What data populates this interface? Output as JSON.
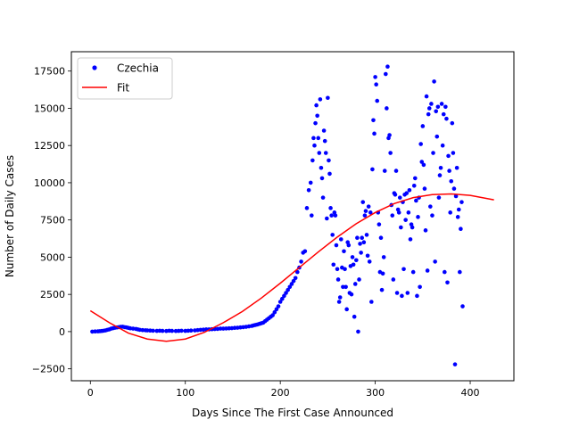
{
  "chart_data": {
    "type": "scatter",
    "xlabel": "Days Since The First Case Announced",
    "ylabel": "Number of Daily Cases",
    "xlim": [
      -20,
      446
    ],
    "ylim": [
      -3300,
      18800
    ],
    "x_ticks": [
      0,
      100,
      200,
      300,
      400
    ],
    "y_ticks": [
      -2500,
      0,
      2500,
      5000,
      7500,
      10000,
      12500,
      15000,
      17500
    ],
    "x_tick_labels": [
      "0",
      "100",
      "200",
      "300",
      "400"
    ],
    "y_tick_labels": [
      "−2500",
      "0",
      "2500",
      "5000",
      "7500",
      "10000",
      "12500",
      "15000",
      "17500"
    ],
    "grid": false,
    "legend_position": "top-left",
    "series": [
      {
        "name": "Czechia",
        "kind": "scatter",
        "color": "#0000ff",
        "points": [
          [
            2,
            0
          ],
          [
            5,
            10
          ],
          [
            8,
            20
          ],
          [
            10,
            30
          ],
          [
            12,
            40
          ],
          [
            14,
            60
          ],
          [
            16,
            80
          ],
          [
            18,
            120
          ],
          [
            20,
            150
          ],
          [
            22,
            200
          ],
          [
            24,
            230
          ],
          [
            26,
            260
          ],
          [
            28,
            280
          ],
          [
            30,
            300
          ],
          [
            32,
            320
          ],
          [
            34,
            330
          ],
          [
            36,
            300
          ],
          [
            38,
            280
          ],
          [
            40,
            250
          ],
          [
            42,
            220
          ],
          [
            45,
            200
          ],
          [
            48,
            180
          ],
          [
            50,
            150
          ],
          [
            52,
            120
          ],
          [
            55,
            100
          ],
          [
            58,
            90
          ],
          [
            60,
            80
          ],
          [
            63,
            70
          ],
          [
            66,
            60
          ],
          [
            70,
            50
          ],
          [
            73,
            60
          ],
          [
            76,
            50
          ],
          [
            80,
            40
          ],
          [
            83,
            60
          ],
          [
            86,
            50
          ],
          [
            90,
            40
          ],
          [
            93,
            50
          ],
          [
            96,
            60
          ],
          [
            100,
            50
          ],
          [
            103,
            60
          ],
          [
            106,
            70
          ],
          [
            110,
            80
          ],
          [
            113,
            100
          ],
          [
            116,
            120
          ],
          [
            119,
            130
          ],
          [
            122,
            150
          ],
          [
            125,
            150
          ],
          [
            128,
            160
          ],
          [
            131,
            170
          ],
          [
            134,
            180
          ],
          [
            137,
            200
          ],
          [
            140,
            200
          ],
          [
            143,
            210
          ],
          [
            146,
            220
          ],
          [
            149,
            230
          ],
          [
            152,
            250
          ],
          [
            155,
            260
          ],
          [
            158,
            280
          ],
          [
            161,
            300
          ],
          [
            164,
            320
          ],
          [
            167,
            350
          ],
          [
            170,
            380
          ],
          [
            172,
            420
          ],
          [
            174,
            450
          ],
          [
            176,
            480
          ],
          [
            178,
            520
          ],
          [
            180,
            560
          ],
          [
            182,
            600
          ],
          [
            184,
            700
          ],
          [
            186,
            800
          ],
          [
            188,
            900
          ],
          [
            190,
            1000
          ],
          [
            192,
            1100
          ],
          [
            194,
            1300
          ],
          [
            196,
            1500
          ],
          [
            198,
            1700
          ],
          [
            200,
            2000
          ],
          [
            202,
            2200
          ],
          [
            204,
            2400
          ],
          [
            206,
            2600
          ],
          [
            208,
            2800
          ],
          [
            210,
            3000
          ],
          [
            212,
            3200
          ],
          [
            214,
            3400
          ],
          [
            216,
            3600
          ],
          [
            218,
            4000
          ],
          [
            220,
            4300
          ],
          [
            222,
            4700
          ],
          [
            224,
            5300
          ],
          [
            226,
            5400
          ],
          [
            228,
            8300
          ],
          [
            230,
            9500
          ],
          [
            232,
            10000
          ],
          [
            233,
            7800
          ],
          [
            234,
            11500
          ],
          [
            235,
            13000
          ],
          [
            236,
            12500
          ],
          [
            237,
            14000
          ],
          [
            238,
            15200
          ],
          [
            239,
            14500
          ],
          [
            240,
            13000
          ],
          [
            241,
            12000
          ],
          [
            242,
            15600
          ],
          [
            243,
            11000
          ],
          [
            244,
            10300
          ],
          [
            245,
            9000
          ],
          [
            246,
            13500
          ],
          [
            247,
            12800
          ],
          [
            248,
            12000
          ],
          [
            249,
            7600
          ],
          [
            250,
            15700
          ],
          [
            251,
            11500
          ],
          [
            252,
            10600
          ],
          [
            253,
            8300
          ],
          [
            254,
            7800
          ],
          [
            255,
            6500
          ],
          [
            256,
            4500
          ],
          [
            257,
            8000
          ],
          [
            258,
            7800
          ],
          [
            259,
            5800
          ],
          [
            260,
            4200
          ],
          [
            261,
            3500
          ],
          [
            262,
            2000
          ],
          [
            263,
            2300
          ],
          [
            264,
            6200
          ],
          [
            265,
            4300
          ],
          [
            266,
            3000
          ],
          [
            267,
            5400
          ],
          [
            268,
            4200
          ],
          [
            269,
            3000
          ],
          [
            270,
            1500
          ],
          [
            271,
            6000
          ],
          [
            272,
            5800
          ],
          [
            273,
            2600
          ],
          [
            274,
            4400
          ],
          [
            275,
            2500
          ],
          [
            276,
            5000
          ],
          [
            277,
            4500
          ],
          [
            278,
            1000
          ],
          [
            279,
            3200
          ],
          [
            280,
            4800
          ],
          [
            281,
            6300
          ],
          [
            282,
            0
          ],
          [
            283,
            3500
          ],
          [
            284,
            5900
          ],
          [
            285,
            5300
          ],
          [
            286,
            6300
          ],
          [
            287,
            8700
          ],
          [
            288,
            6000
          ],
          [
            289,
            7800
          ],
          [
            290,
            8100
          ],
          [
            291,
            6500
          ],
          [
            292,
            5100
          ],
          [
            293,
            8400
          ],
          [
            294,
            4700
          ],
          [
            295,
            8000
          ],
          [
            296,
            2000
          ],
          [
            297,
            10900
          ],
          [
            298,
            14200
          ],
          [
            299,
            13300
          ],
          [
            300,
            17100
          ],
          [
            301,
            16600
          ],
          [
            302,
            15500
          ],
          [
            303,
            8000
          ],
          [
            304,
            7200
          ],
          [
            305,
            4000
          ],
          [
            306,
            6300
          ],
          [
            307,
            2800
          ],
          [
            308,
            3900
          ],
          [
            309,
            5000
          ],
          [
            310,
            10800
          ],
          [
            311,
            17300
          ],
          [
            312,
            15000
          ],
          [
            313,
            17800
          ],
          [
            314,
            13000
          ],
          [
            315,
            13200
          ],
          [
            316,
            12000
          ],
          [
            317,
            8500
          ],
          [
            318,
            7800
          ],
          [
            319,
            3500
          ],
          [
            320,
            9300
          ],
          [
            321,
            9200
          ],
          [
            322,
            10800
          ],
          [
            323,
            2600
          ],
          [
            324,
            8200
          ],
          [
            325,
            8000
          ],
          [
            326,
            9000
          ],
          [
            327,
            7000
          ],
          [
            328,
            2400
          ],
          [
            329,
            8700
          ],
          [
            330,
            4200
          ],
          [
            331,
            9200
          ],
          [
            332,
            7500
          ],
          [
            333,
            9300
          ],
          [
            334,
            2600
          ],
          [
            335,
            8000
          ],
          [
            336,
            9500
          ],
          [
            337,
            6200
          ],
          [
            338,
            7200
          ],
          [
            339,
            7000
          ],
          [
            340,
            4000
          ],
          [
            341,
            9800
          ],
          [
            342,
            10300
          ],
          [
            343,
            8800
          ],
          [
            344,
            2400
          ],
          [
            345,
            7700
          ],
          [
            346,
            9000
          ],
          [
            347,
            3000
          ],
          [
            348,
            12600
          ],
          [
            349,
            11400
          ],
          [
            350,
            13800
          ],
          [
            351,
            11200
          ],
          [
            352,
            9600
          ],
          [
            353,
            6800
          ],
          [
            354,
            15800
          ],
          [
            355,
            4100
          ],
          [
            356,
            14600
          ],
          [
            357,
            15000
          ],
          [
            358,
            8400
          ],
          [
            359,
            15300
          ],
          [
            360,
            7800
          ],
          [
            361,
            12000
          ],
          [
            362,
            16800
          ],
          [
            363,
            4700
          ],
          [
            364,
            14800
          ],
          [
            365,
            13100
          ],
          [
            366,
            15100
          ],
          [
            367,
            9000
          ],
          [
            368,
            10500
          ],
          [
            369,
            11000
          ],
          [
            370,
            15300
          ],
          [
            371,
            12500
          ],
          [
            372,
            14600
          ],
          [
            373,
            4000
          ],
          [
            374,
            15100
          ],
          [
            375,
            14300
          ],
          [
            376,
            3300
          ],
          [
            377,
            11800
          ],
          [
            378,
            10800
          ],
          [
            379,
            8000
          ],
          [
            380,
            10100
          ],
          [
            381,
            14000
          ],
          [
            382,
            12000
          ],
          [
            383,
            9600
          ],
          [
            384,
            -2200
          ],
          [
            385,
            9100
          ],
          [
            386,
            11000
          ],
          [
            387,
            7700
          ],
          [
            388,
            8200
          ],
          [
            389,
            4000
          ],
          [
            390,
            6900
          ],
          [
            391,
            8700
          ],
          [
            392,
            1700
          ]
        ]
      },
      {
        "name": "Fit",
        "kind": "line",
        "color": "#ff0000",
        "points": [
          [
            0,
            1400
          ],
          [
            20,
            600
          ],
          [
            40,
            -100
          ],
          [
            60,
            -500
          ],
          [
            80,
            -650
          ],
          [
            100,
            -500
          ],
          [
            120,
            -50
          ],
          [
            140,
            600
          ],
          [
            160,
            1350
          ],
          [
            180,
            2250
          ],
          [
            200,
            3250
          ],
          [
            220,
            4300
          ],
          [
            240,
            5350
          ],
          [
            260,
            6350
          ],
          [
            280,
            7250
          ],
          [
            300,
            8000
          ],
          [
            320,
            8600
          ],
          [
            340,
            9000
          ],
          [
            360,
            9200
          ],
          [
            380,
            9250
          ],
          [
            400,
            9150
          ],
          [
            425,
            8850
          ]
        ]
      }
    ]
  }
}
